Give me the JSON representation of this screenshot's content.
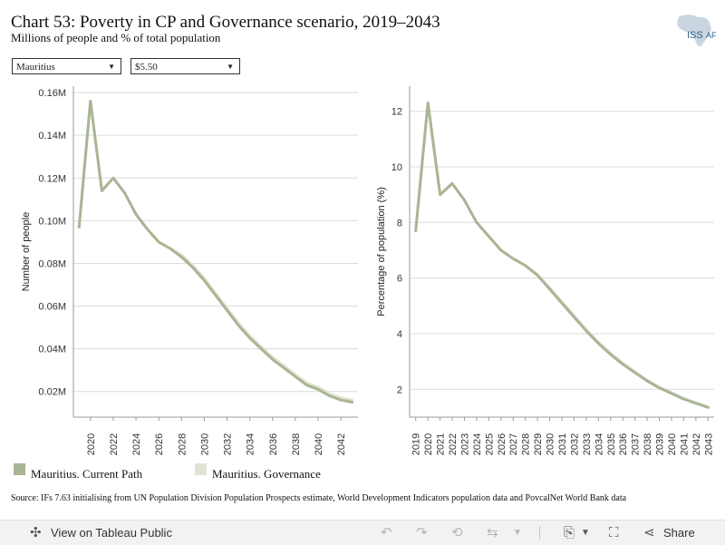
{
  "title": "Chart 53: Poverty in CP and Governance scenario, 2019–2043",
  "subtitle": "Millions of people and % of total population",
  "logo": {
    "text_main": "ISS",
    "text_sub": "AF"
  },
  "filters": {
    "country": "Mauritius",
    "threshold": "$5.50"
  },
  "colors": {
    "current_path": "#a9b594",
    "governance": "#dfe3d3",
    "grid": "#dcdcdc",
    "axis": "#999999"
  },
  "legend": [
    {
      "label": "Mauritius. Current Path",
      "color": "#a9b594"
    },
    {
      "label": "Mauritius. Governance",
      "color": "#dfe3d3"
    }
  ],
  "source": "Source: IFs 7.63 initialising from UN Population Division Population Prospects estimate, World Development Indicators population data and PovcalNet World Bank data",
  "toolbar": {
    "view_label": "View on Tableau Public",
    "share_label": "Share",
    "icons": [
      "tableau-icon",
      "undo-icon",
      "redo-icon",
      "revert-icon",
      "refresh-icon",
      "download-icon",
      "fullscreen-icon",
      "share-icon"
    ]
  },
  "chart_data": [
    {
      "type": "line",
      "ylabel": "Number of people",
      "xlabel": "",
      "ylim": [
        0.008,
        0.163
      ],
      "yticks": [
        0.02,
        0.04,
        0.06,
        0.08,
        0.1,
        0.12,
        0.14,
        0.16
      ],
      "ytick_labels": [
        "0.02M",
        "0.04M",
        "0.06M",
        "0.08M",
        "0.10M",
        "0.12M",
        "0.14M",
        "0.16M"
      ],
      "xlim": [
        2018.5,
        2043.5
      ],
      "xticks": [
        2020,
        2022,
        2024,
        2026,
        2028,
        2030,
        2032,
        2034,
        2036,
        2038,
        2040,
        2042
      ],
      "x": [
        2019,
        2020,
        2021,
        2022,
        2023,
        2024,
        2025,
        2026,
        2027,
        2028,
        2029,
        2030,
        2031,
        2032,
        2033,
        2034,
        2035,
        2036,
        2037,
        2038,
        2039,
        2040,
        2041,
        2042,
        2043
      ],
      "series": [
        {
          "name": "Mauritius. Current Path",
          "color": "#a9b594",
          "values": [
            0.097,
            0.156,
            0.114,
            0.12,
            0.113,
            0.103,
            0.096,
            0.09,
            0.087,
            0.083,
            0.078,
            0.072,
            0.065,
            0.058,
            0.051,
            0.045,
            0.04,
            0.035,
            0.031,
            0.027,
            0.023,
            0.021,
            0.018,
            0.016,
            0.015
          ]
        },
        {
          "name": "Mauritius. Governance",
          "color": "#dfe3d3",
          "values": [
            0.097,
            0.156,
            0.114,
            0.12,
            0.113,
            0.103,
            0.096,
            0.09,
            0.087,
            0.084,
            0.079,
            0.073,
            0.066,
            0.059,
            0.052,
            0.046,
            0.041,
            0.036,
            0.032,
            0.028,
            0.024,
            0.022,
            0.019,
            0.017,
            0.016
          ]
        }
      ]
    },
    {
      "type": "line",
      "ylabel": "Percentage of population (%)",
      "xlabel": "",
      "ylim": [
        1.0,
        12.9
      ],
      "yticks": [
        2,
        4,
        6,
        8,
        10,
        12
      ],
      "ytick_labels": [
        "2",
        "4",
        "6",
        "8",
        "10",
        "12"
      ],
      "xlim": [
        2018.5,
        2043.5
      ],
      "xticks": [
        2019,
        2020,
        2021,
        2022,
        2023,
        2024,
        2025,
        2026,
        2027,
        2028,
        2029,
        2030,
        2031,
        2032,
        2033,
        2034,
        2035,
        2036,
        2037,
        2038,
        2039,
        2040,
        2041,
        2042,
        2043
      ],
      "x": [
        2019,
        2020,
        2021,
        2022,
        2023,
        2024,
        2025,
        2026,
        2027,
        2028,
        2029,
        2030,
        2031,
        2032,
        2033,
        2034,
        2035,
        2036,
        2037,
        2038,
        2039,
        2040,
        2041,
        2042,
        2043
      ],
      "series": [
        {
          "name": "Mauritius. Current Path",
          "color": "#a9b594",
          "values": [
            7.7,
            12.3,
            9.0,
            9.4,
            8.8,
            8.0,
            7.5,
            7.0,
            6.7,
            6.45,
            6.1,
            5.6,
            5.1,
            4.6,
            4.1,
            3.65,
            3.25,
            2.9,
            2.6,
            2.3,
            2.05,
            1.85,
            1.65,
            1.5,
            1.35
          ]
        },
        {
          "name": "Mauritius. Governance",
          "color": "#dfe3d3",
          "values": [
            7.7,
            12.3,
            9.0,
            9.4,
            8.8,
            8.0,
            7.5,
            7.0,
            6.7,
            6.45,
            6.12,
            5.65,
            5.15,
            4.65,
            4.15,
            3.7,
            3.3,
            2.95,
            2.63,
            2.33,
            2.08,
            1.88,
            1.68,
            1.52,
            1.37
          ]
        }
      ]
    }
  ]
}
